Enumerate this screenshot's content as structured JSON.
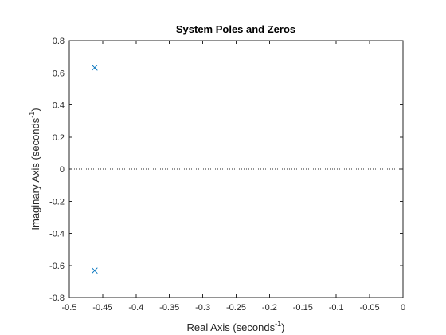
{
  "chart_data": {
    "type": "scatter",
    "title": "System Poles and Zeros",
    "xlabel": {
      "text": "Real Axis (seconds",
      "sup": "-1",
      "suffix": ")"
    },
    "ylabel": {
      "text": "Imaginary Axis (seconds",
      "sup": "-1",
      "suffix": ")"
    },
    "xlim": [
      -0.5,
      0
    ],
    "ylim": [
      -0.8,
      0.8
    ],
    "xticks": [
      -0.5,
      -0.45,
      -0.4,
      -0.35,
      -0.3,
      -0.25,
      -0.2,
      -0.15,
      -0.1,
      -0.05,
      0
    ],
    "xtick_labels": [
      "-0.5",
      "-0.45",
      "-0.4",
      "-0.35",
      "-0.3",
      "-0.25",
      "-0.2",
      "-0.15",
      "-0.1",
      "-0.05",
      "0"
    ],
    "yticks": [
      -0.8,
      -0.6,
      -0.4,
      -0.2,
      0,
      0.2,
      0.4,
      0.6,
      0.8
    ],
    "ytick_labels": [
      "-0.8",
      "-0.6",
      "-0.4",
      "-0.2",
      "0",
      "0.2",
      "0.4",
      "0.6",
      "0.8"
    ],
    "grid": false,
    "reference_line": {
      "y": 0,
      "style": "dotted"
    },
    "series": [
      {
        "marker": "x",
        "color": "#0072BD",
        "points": [
          {
            "x": -0.462,
            "y": 0.632
          },
          {
            "x": -0.462,
            "y": -0.632
          }
        ]
      }
    ],
    "colors": {
      "axis": "#262626",
      "reference": "#262626",
      "marker": "#0072BD"
    }
  }
}
